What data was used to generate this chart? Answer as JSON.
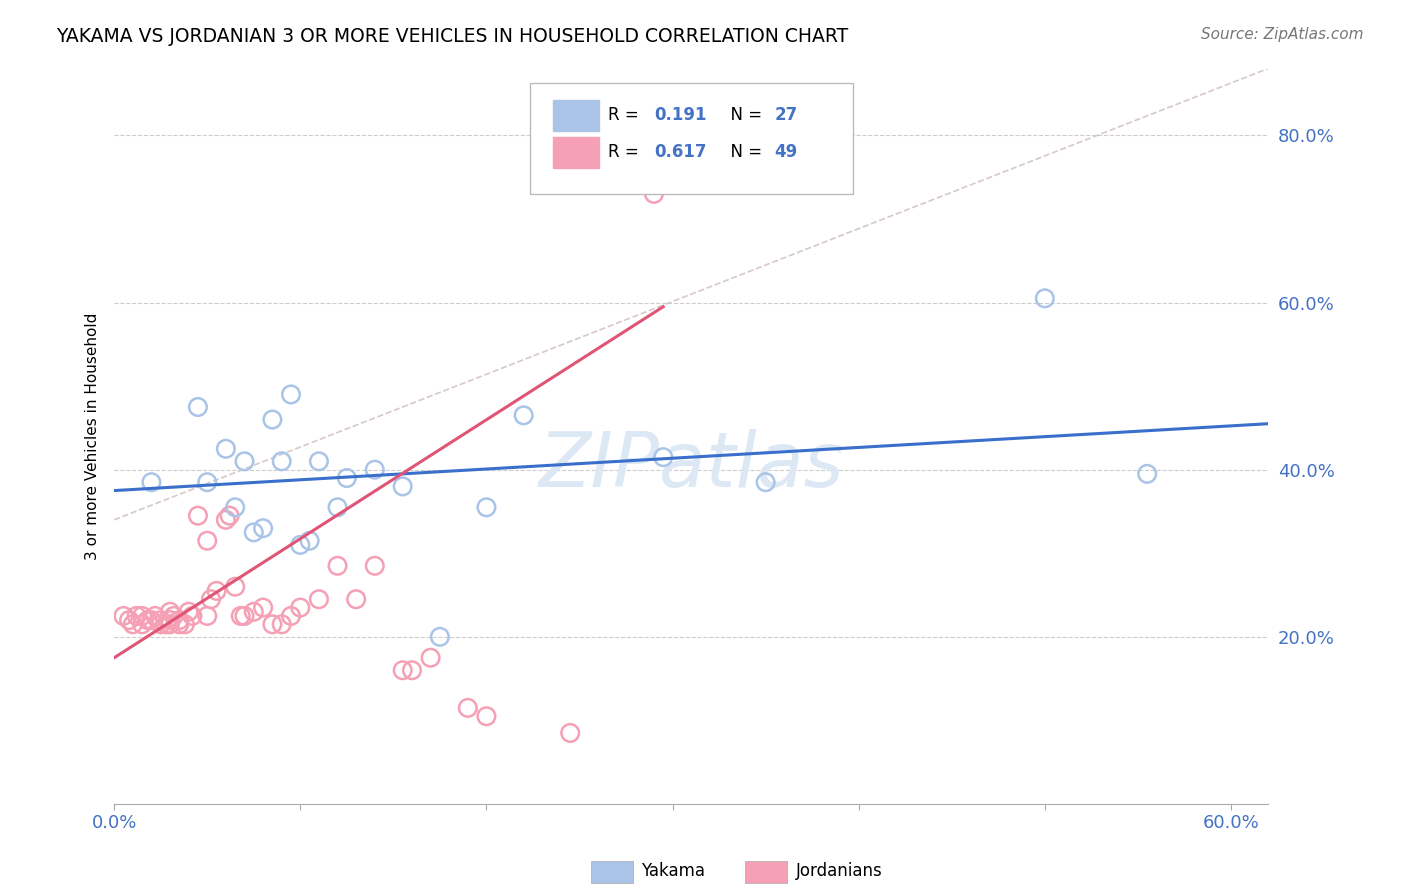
{
  "title": "YAKAMA VS JORDANIAN 3 OR MORE VEHICLES IN HOUSEHOLD CORRELATION CHART",
  "source": "Source: ZipAtlas.com",
  "ylabel": "3 or more Vehicles in Household",
  "xlim": [
    0.0,
    0.62
  ],
  "ylim": [
    0.0,
    0.88
  ],
  "xticks": [
    0.0,
    0.6
  ],
  "xtick_labels": [
    "0.0%",
    "60.0%"
  ],
  "yticks": [
    0.2,
    0.4,
    0.6,
    0.8
  ],
  "ytick_labels": [
    "20.0%",
    "40.0%",
    "60.0%",
    "80.0%"
  ],
  "watermark": "ZIPatlas",
  "yakama_color": "#aac4e8",
  "jordanian_color": "#f5a0b5",
  "blue_line_color": "#3a6fcc",
  "pink_line_color": "#e05575",
  "diag_line_color": "#d8c8c8",
  "yakama_x": [
    0.02,
    0.045,
    0.05,
    0.06,
    0.065,
    0.07,
    0.075,
    0.08,
    0.085,
    0.09,
    0.095,
    0.1,
    0.105,
    0.11,
    0.12,
    0.125,
    0.14,
    0.155,
    0.175,
    0.2,
    0.22,
    0.295,
    0.35,
    0.5,
    0.555
  ],
  "yakama_y": [
    0.385,
    0.475,
    0.385,
    0.425,
    0.355,
    0.41,
    0.325,
    0.33,
    0.46,
    0.41,
    0.49,
    0.31,
    0.315,
    0.41,
    0.355,
    0.39,
    0.4,
    0.38,
    0.2,
    0.355,
    0.465,
    0.415,
    0.385,
    0.605,
    0.395
  ],
  "jordanian_x": [
    0.005,
    0.008,
    0.01,
    0.012,
    0.015,
    0.015,
    0.018,
    0.02,
    0.022,
    0.025,
    0.025,
    0.028,
    0.03,
    0.03,
    0.03,
    0.032,
    0.035,
    0.035,
    0.038,
    0.04,
    0.042,
    0.045,
    0.05,
    0.05,
    0.052,
    0.055,
    0.06,
    0.062,
    0.065,
    0.068,
    0.07,
    0.075,
    0.08,
    0.085,
    0.09,
    0.095,
    0.1,
    0.11,
    0.12,
    0.13,
    0.14,
    0.155,
    0.16,
    0.17,
    0.19,
    0.2,
    0.245,
    0.29
  ],
  "jordanian_y": [
    0.225,
    0.22,
    0.215,
    0.225,
    0.215,
    0.225,
    0.22,
    0.22,
    0.225,
    0.215,
    0.22,
    0.215,
    0.215,
    0.22,
    0.23,
    0.225,
    0.215,
    0.22,
    0.215,
    0.23,
    0.225,
    0.345,
    0.225,
    0.315,
    0.245,
    0.255,
    0.34,
    0.345,
    0.26,
    0.225,
    0.225,
    0.23,
    0.235,
    0.215,
    0.215,
    0.225,
    0.235,
    0.245,
    0.285,
    0.245,
    0.285,
    0.16,
    0.16,
    0.175,
    0.115,
    0.105,
    0.085,
    0.73
  ],
  "blue_line_x": [
    0.0,
    0.62
  ],
  "blue_line_y": [
    0.375,
    0.455
  ],
  "pink_line_x": [
    0.0,
    0.295
  ],
  "pink_line_y": [
    0.175,
    0.595
  ],
  "diag_line_x": [
    0.0,
    0.62
  ],
  "diag_line_y": [
    0.34,
    0.88
  ]
}
